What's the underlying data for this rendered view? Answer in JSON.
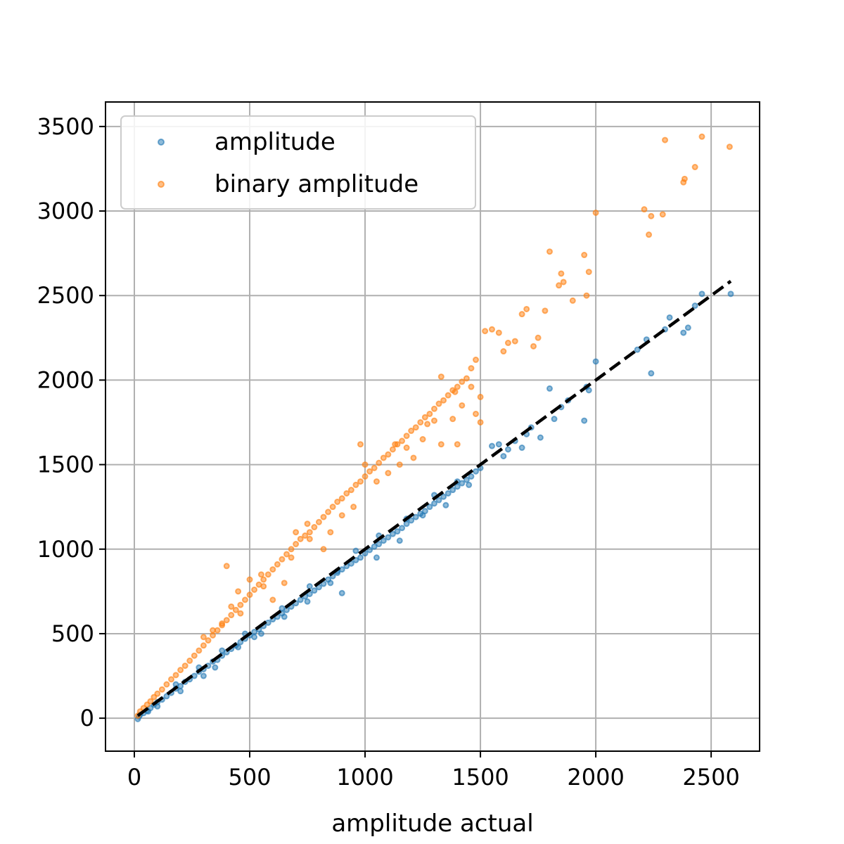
{
  "chart_data": {
    "type": "scatter",
    "title": "",
    "xlabel": "amplitude actual",
    "ylabel": "",
    "xlim": [
      -125,
      2710
    ],
    "ylim": [
      -195,
      3645
    ],
    "xticks": [
      0,
      500,
      1000,
      1500,
      2000,
      2500
    ],
    "yticks": [
      0,
      500,
      1000,
      1500,
      2000,
      2500,
      3000,
      3500
    ],
    "grid": true,
    "legend_position": "upper-left",
    "series": [
      {
        "name": "amplitude",
        "color": "#1f77b4",
        "points": [
          [
            15,
            -5
          ],
          [
            25,
            20
          ],
          [
            40,
            30
          ],
          [
            55,
            45
          ],
          [
            70,
            60
          ],
          [
            85,
            80
          ],
          [
            100,
            95
          ],
          [
            120,
            110
          ],
          [
            140,
            130
          ],
          [
            160,
            150
          ],
          [
            180,
            175
          ],
          [
            200,
            190
          ],
          [
            220,
            215
          ],
          [
            240,
            230
          ],
          [
            260,
            250
          ],
          [
            280,
            275
          ],
          [
            300,
            290
          ],
          [
            320,
            310
          ],
          [
            340,
            335
          ],
          [
            360,
            345
          ],
          [
            380,
            370
          ],
          [
            400,
            390
          ],
          [
            420,
            410
          ],
          [
            440,
            430
          ],
          [
            460,
            450
          ],
          [
            480,
            470
          ],
          [
            500,
            490
          ],
          [
            520,
            510
          ],
          [
            540,
            525
          ],
          [
            560,
            545
          ],
          [
            580,
            565
          ],
          [
            600,
            585
          ],
          [
            620,
            600
          ],
          [
            640,
            620
          ],
          [
            660,
            640
          ],
          [
            680,
            660
          ],
          [
            700,
            680
          ],
          [
            720,
            700
          ],
          [
            740,
            720
          ],
          [
            760,
            735
          ],
          [
            780,
            755
          ],
          [
            800,
            775
          ],
          [
            820,
            795
          ],
          [
            840,
            820
          ],
          [
            860,
            840
          ],
          [
            880,
            860
          ],
          [
            900,
            880
          ],
          [
            920,
            900
          ],
          [
            940,
            915
          ],
          [
            960,
            935
          ],
          [
            980,
            950
          ],
          [
            1000,
            975
          ],
          [
            1020,
            995
          ],
          [
            1040,
            1015
          ],
          [
            1060,
            1030
          ],
          [
            1080,
            1050
          ],
          [
            1100,
            1070
          ],
          [
            1120,
            1090
          ],
          [
            1140,
            1105
          ],
          [
            1160,
            1125
          ],
          [
            1180,
            1150
          ],
          [
            1200,
            1170
          ],
          [
            1220,
            1190
          ],
          [
            1240,
            1210
          ],
          [
            1260,
            1225
          ],
          [
            1280,
            1250
          ],
          [
            1300,
            1270
          ],
          [
            1320,
            1290
          ],
          [
            1340,
            1310
          ],
          [
            1360,
            1330
          ],
          [
            1380,
            1350
          ],
          [
            1400,
            1370
          ],
          [
            1420,
            1390
          ],
          [
            1440,
            1410
          ],
          [
            1460,
            1430
          ],
          [
            1480,
            1460
          ],
          [
            1500,
            1480
          ],
          [
            1550,
            1610
          ],
          [
            1580,
            1620
          ],
          [
            1600,
            1550
          ],
          [
            1620,
            1590
          ],
          [
            1650,
            1640
          ],
          [
            1680,
            1600
          ],
          [
            1700,
            1680
          ],
          [
            1720,
            1720
          ],
          [
            1760,
            1660
          ],
          [
            1800,
            1950
          ],
          [
            1820,
            1770
          ],
          [
            1850,
            1840
          ],
          [
            1880,
            1880
          ],
          [
            1950,
            1760
          ],
          [
            1960,
            1960
          ],
          [
            1970,
            1940
          ],
          [
            2000,
            2110
          ],
          [
            2180,
            2180
          ],
          [
            2220,
            2240
          ],
          [
            2240,
            2040
          ],
          [
            2300,
            2300
          ],
          [
            2320,
            2370
          ],
          [
            2380,
            2280
          ],
          [
            2400,
            2310
          ],
          [
            2430,
            2440
          ],
          [
            2460,
            2510
          ],
          [
            2585,
            2510
          ],
          [
            300,
            250
          ],
          [
            350,
            300
          ],
          [
            450,
            420
          ],
          [
            550,
            500
          ],
          [
            650,
            600
          ],
          [
            750,
            690
          ],
          [
            850,
            800
          ],
          [
            900,
            740
          ],
          [
            1050,
            950
          ],
          [
            1150,
            1050
          ],
          [
            1250,
            1200
          ],
          [
            1350,
            1260
          ],
          [
            1450,
            1380
          ],
          [
            200,
            160
          ],
          [
            100,
            70
          ],
          [
            60,
            40
          ],
          [
            20,
            10
          ],
          [
            520,
            480
          ],
          [
            640,
            650
          ],
          [
            760,
            780
          ],
          [
            880,
            870
          ],
          [
            960,
            990
          ],
          [
            1060,
            1080
          ],
          [
            1180,
            1180
          ],
          [
            1300,
            1320
          ],
          [
            1400,
            1400
          ],
          [
            180,
            200
          ],
          [
            280,
            300
          ],
          [
            380,
            400
          ],
          [
            480,
            500
          ]
        ]
      },
      {
        "name": "binary amplitude",
        "color": "#ff7f0e",
        "points": [
          [
            15,
            15
          ],
          [
            25,
            40
          ],
          [
            40,
            60
          ],
          [
            55,
            80
          ],
          [
            70,
            100
          ],
          [
            85,
            125
          ],
          [
            100,
            145
          ],
          [
            120,
            170
          ],
          [
            140,
            200
          ],
          [
            160,
            230
          ],
          [
            180,
            255
          ],
          [
            200,
            285
          ],
          [
            220,
            310
          ],
          [
            240,
            340
          ],
          [
            260,
            370
          ],
          [
            280,
            400
          ],
          [
            300,
            430
          ],
          [
            320,
            460
          ],
          [
            340,
            490
          ],
          [
            360,
            520
          ],
          [
            380,
            550
          ],
          [
            400,
            580
          ],
          [
            420,
            610
          ],
          [
            440,
            640
          ],
          [
            460,
            670
          ],
          [
            480,
            700
          ],
          [
            500,
            730
          ],
          [
            520,
            760
          ],
          [
            540,
            790
          ],
          [
            560,
            820
          ],
          [
            580,
            850
          ],
          [
            600,
            880
          ],
          [
            620,
            910
          ],
          [
            640,
            940
          ],
          [
            660,
            970
          ],
          [
            680,
            1000
          ],
          [
            700,
            1030
          ],
          [
            720,
            1060
          ],
          [
            740,
            1080
          ],
          [
            760,
            1100
          ],
          [
            780,
            1130
          ],
          [
            800,
            1160
          ],
          [
            820,
            1190
          ],
          [
            840,
            1220
          ],
          [
            860,
            1250
          ],
          [
            880,
            1280
          ],
          [
            900,
            1300
          ],
          [
            920,
            1330
          ],
          [
            940,
            1350
          ],
          [
            960,
            1380
          ],
          [
            980,
            1400
          ],
          [
            1000,
            1430
          ],
          [
            1020,
            1460
          ],
          [
            1040,
            1480
          ],
          [
            1060,
            1510
          ],
          [
            1080,
            1540
          ],
          [
            1100,
            1560
          ],
          [
            1120,
            1590
          ],
          [
            1140,
            1620
          ],
          [
            1160,
            1640
          ],
          [
            1180,
            1670
          ],
          [
            1200,
            1700
          ],
          [
            1220,
            1720
          ],
          [
            1240,
            1750
          ],
          [
            1260,
            1780
          ],
          [
            1280,
            1800
          ],
          [
            1300,
            1830
          ],
          [
            1320,
            1860
          ],
          [
            1340,
            1880
          ],
          [
            1360,
            1910
          ],
          [
            1380,
            1940
          ],
          [
            1400,
            1960
          ],
          [
            1420,
            1990
          ],
          [
            1440,
            2010
          ],
          [
            1460,
            2070
          ],
          [
            1480,
            2120
          ],
          [
            1500,
            1900
          ],
          [
            1520,
            2290
          ],
          [
            1550,
            2300
          ],
          [
            1580,
            2280
          ],
          [
            1600,
            2170
          ],
          [
            1620,
            2220
          ],
          [
            1650,
            2230
          ],
          [
            1680,
            2390
          ],
          [
            1700,
            2420
          ],
          [
            1730,
            2200
          ],
          [
            1750,
            2250
          ],
          [
            1780,
            2410
          ],
          [
            1800,
            2760
          ],
          [
            1840,
            2560
          ],
          [
            1850,
            2630
          ],
          [
            1860,
            2580
          ],
          [
            1900,
            2470
          ],
          [
            1950,
            2740
          ],
          [
            1960,
            2500
          ],
          [
            1970,
            2640
          ],
          [
            2000,
            2990
          ],
          [
            2210,
            3010
          ],
          [
            2230,
            2860
          ],
          [
            2240,
            2970
          ],
          [
            2290,
            2980
          ],
          [
            2300,
            3420
          ],
          [
            2380,
            3170
          ],
          [
            2385,
            3190
          ],
          [
            2430,
            3260
          ],
          [
            2460,
            3440
          ],
          [
            2580,
            3380
          ],
          [
            400,
            900
          ],
          [
            450,
            750
          ],
          [
            550,
            850
          ],
          [
            600,
            700
          ],
          [
            650,
            800
          ],
          [
            700,
            1100
          ],
          [
            750,
            1150
          ],
          [
            850,
            1100
          ],
          [
            900,
            1200
          ],
          [
            950,
            1250
          ],
          [
            1050,
            1400
          ],
          [
            1100,
            1450
          ],
          [
            1130,
            1620
          ],
          [
            1180,
            1600
          ],
          [
            1210,
            1540
          ],
          [
            1250,
            1650
          ],
          [
            1300,
            1760
          ],
          [
            1330,
            2020
          ],
          [
            1380,
            1770
          ],
          [
            1400,
            1620
          ],
          [
            1420,
            1850
          ],
          [
            1460,
            1960
          ],
          [
            1480,
            1800
          ],
          [
            1500,
            1750
          ],
          [
            1390,
            1930
          ],
          [
            1330,
            1620
          ],
          [
            1270,
            1740
          ],
          [
            1150,
            1500
          ],
          [
            980,
            1620
          ],
          [
            1000,
            1500
          ],
          [
            820,
            1000
          ],
          [
            760,
            1060
          ],
          [
            680,
            950
          ],
          [
            560,
            780
          ],
          [
            500,
            820
          ],
          [
            460,
            620
          ],
          [
            420,
            660
          ],
          [
            380,
            560
          ],
          [
            340,
            520
          ],
          [
            300,
            480
          ]
        ]
      }
    ],
    "reference_line": {
      "style": "dashed",
      "color": "#000000",
      "from": [
        15,
        15
      ],
      "to": [
        2585,
        2585
      ]
    }
  }
}
